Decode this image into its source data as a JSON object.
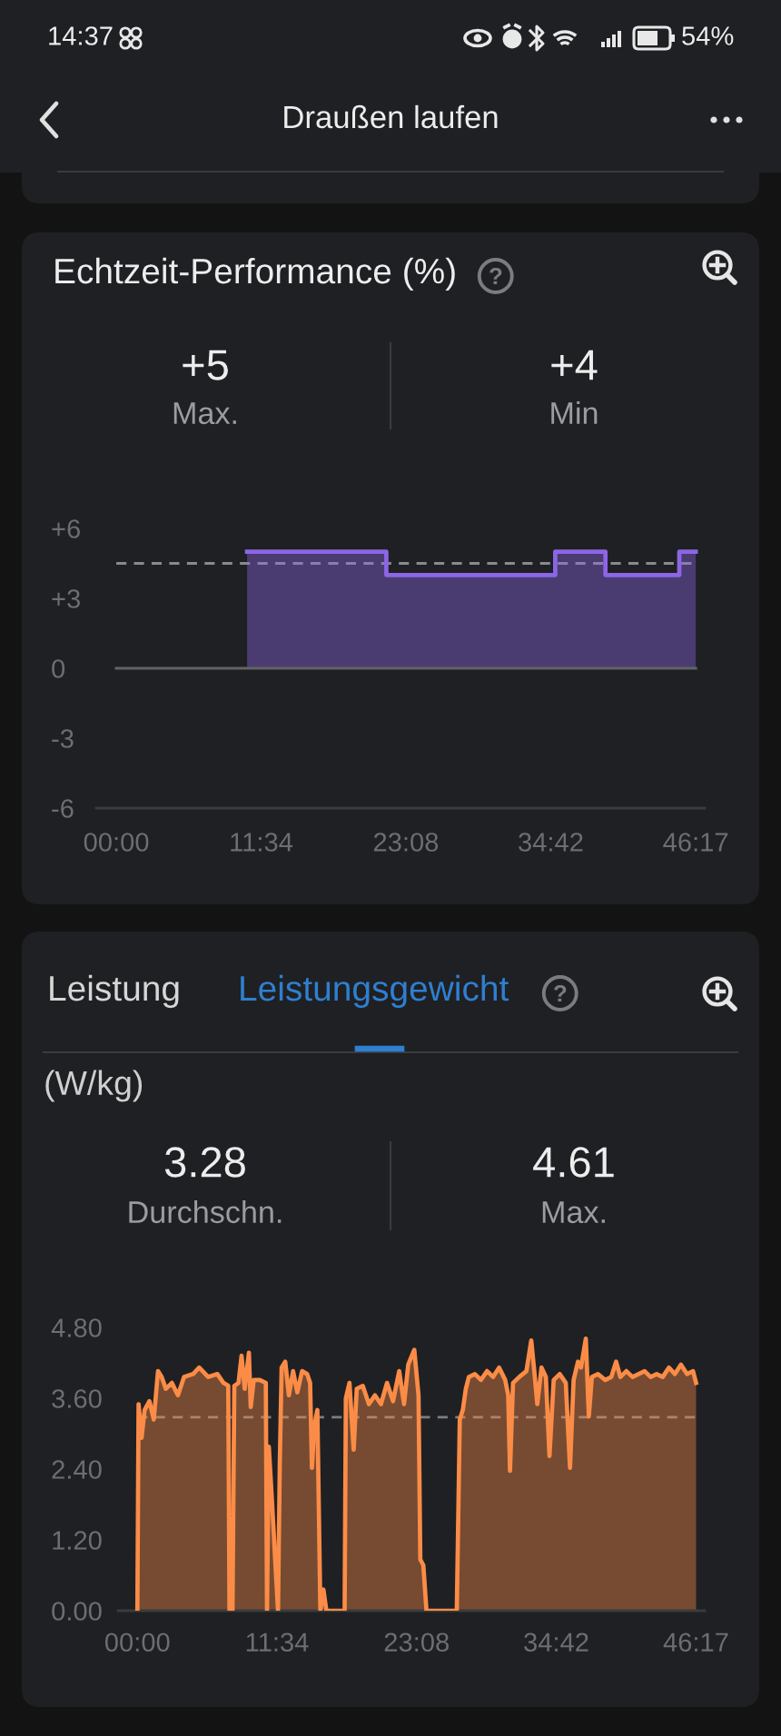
{
  "chart_data": [
    {
      "type": "area",
      "title": "Echtzeit-Performance (%)",
      "annotations": [
        "14:37",
        "54%",
        "Draußen laufen",
        "+5",
        "Max.",
        "+4",
        "Min"
      ],
      "xlim": [
        -1.6,
        47.0
      ],
      "xticks": [
        {
          "value": 0,
          "label": "00:00"
        },
        {
          "value": 11.567,
          "label": "11:34"
        },
        {
          "value": 23.133,
          "label": "23:08"
        },
        {
          "value": 34.7,
          "label": "34:42"
        },
        {
          "value": 46.283,
          "label": "46:17"
        }
      ],
      "ylim": [
        -6,
        6
      ],
      "yticks": [
        -6,
        -3,
        0,
        {
          "value": 3,
          "label": "+3"
        },
        {
          "value": 6,
          "label": "+6"
        }
      ],
      "ref_lines": [
        {
          "axis": "y",
          "value": 4.5,
          "line_style": "dashed",
          "color": "#8a8a8e"
        }
      ],
      "series": [
        {
          "type": "line",
          "color": "#626266",
          "x": [
            0,
            46.283
          ],
          "values": [
            0,
            0
          ]
        },
        {
          "type": "area",
          "color": "#8c66e6",
          "x": [
            10.45,
            21.57,
            21.57,
            35.06,
            35.06,
            39.07,
            39.07,
            44.97,
            44.97,
            46.283
          ],
          "values": [
            5,
            5,
            4,
            4,
            5,
            5,
            4,
            4,
            5,
            5
          ]
        }
      ]
    },
    {
      "type": "area",
      "title": "Leistungsgewicht",
      "ylabel": "(W/kg)",
      "annotations": [
        "Leistung",
        "3.28",
        "Durchschn.",
        "4.61",
        "Max."
      ],
      "xlim": [
        -1.6,
        47.0
      ],
      "xticks": [
        {
          "value": 0,
          "label": "00:00"
        },
        {
          "value": 11.567,
          "label": "11:34"
        },
        {
          "value": 23.133,
          "label": "23:08"
        },
        {
          "value": 34.7,
          "label": "34:42"
        },
        {
          "value": 46.283,
          "label": "46:17"
        }
      ],
      "ylim": [
        0,
        4.8
      ],
      "yticks": [
        {
          "value": 0,
          "label": "0.00"
        },
        {
          "value": 1.2,
          "label": "1.20"
        },
        {
          "value": 2.4,
          "label": "2.40"
        },
        {
          "value": 3.6,
          "label": "3.60"
        },
        {
          "value": 4.8,
          "label": "4.80"
        }
      ],
      "ref_lines": [
        {
          "axis": "y",
          "value": 3.28,
          "line_style": "dashed",
          "color": "#7d7d80"
        }
      ],
      "series": [
        {
          "color": "#fb8c47",
          "x": [
            0.0,
            0.1,
            0.35,
            0.6,
            1.0,
            1.36,
            1.71,
            2.01,
            2.36,
            2.86,
            3.36,
            3.87,
            4.62,
            5.12,
            5.87,
            6.63,
            7.13,
            7.53,
            7.63,
            7.88,
            8.03,
            8.38,
            8.63,
            8.89,
            9.24,
            9.39,
            9.64,
            10.14,
            10.64,
            10.74,
            10.89,
            11.14,
            11.4,
            11.65,
            11.8,
            11.95,
            12.25,
            12.55,
            12.9,
            13.25,
            13.65,
            14.06,
            14.31,
            14.46,
            14.66,
            14.91,
            15.16,
            15.41,
            15.66,
            17.17,
            17.27,
            17.57,
            17.92,
            18.17,
            18.67,
            19.18,
            19.68,
            20.18,
            20.68,
            21.18,
            21.69,
            22.09,
            22.44,
            22.94,
            23.29,
            23.44,
            23.69,
            23.95,
            26.46,
            26.71,
            26.96,
            27.21,
            27.46,
            27.96,
            28.46,
            28.97,
            29.47,
            29.97,
            30.47,
            30.72,
            30.87,
            31.12,
            31.63,
            32.23,
            32.63,
            32.88,
            33.13,
            33.48,
            33.84,
            34.14,
            34.49,
            34.99,
            35.49,
            35.84,
            36.14,
            36.5,
            36.75,
            37.15,
            37.4,
            37.65,
            38.15,
            38.76,
            39.26,
            39.66,
            40.01,
            40.51,
            41.02,
            41.52,
            42.02,
            42.52,
            43.02,
            43.52,
            44.03,
            44.53,
            45.03,
            45.53,
            46.03,
            46.283
          ],
          "values": [
            0,
            3.5,
            2.93,
            3.4,
            3.55,
            3.24,
            4.06,
            3.96,
            3.76,
            3.86,
            3.65,
            3.96,
            4.01,
            4.12,
            3.96,
            4.01,
            3.86,
            3.81,
            0,
            0,
            3.81,
            3.86,
            4.32,
            3.76,
            4.37,
            3.45,
            3.91,
            3.91,
            3.86,
            0,
            2.78,
            1.9,
            0.93,
            0,
            2.52,
            4.12,
            4.22,
            3.65,
            4.06,
            3.7,
            4.06,
            4.01,
            3.86,
            2.42,
            3.14,
            3.4,
            0,
            0.36,
            0,
            0,
            3.6,
            3.86,
            2.73,
            3.76,
            3.81,
            3.5,
            3.65,
            3.5,
            3.86,
            3.55,
            4.06,
            3.5,
            4.17,
            4.42,
            3.65,
            0.87,
            0.77,
            0,
            0,
            3.24,
            3.4,
            3.76,
            3.96,
            4.01,
            3.91,
            4.06,
            3.96,
            4.12,
            3.91,
            3.65,
            2.37,
            3.86,
            3.96,
            4.06,
            4.58,
            4.06,
            3.5,
            4.12,
            3.96,
            2.62,
            3.91,
            4.01,
            3.86,
            2.42,
            3.91,
            4.22,
            4.12,
            4.61,
            3.29,
            3.96,
            4.01,
            3.91,
            3.96,
            4.22,
            3.96,
            4.06,
            3.96,
            4.01,
            4.06,
            3.96,
            4.01,
            3.96,
            4.12,
            4.01,
            4.17,
            4.01,
            4.06,
            3.86
          ]
        }
      ]
    }
  ]
}
